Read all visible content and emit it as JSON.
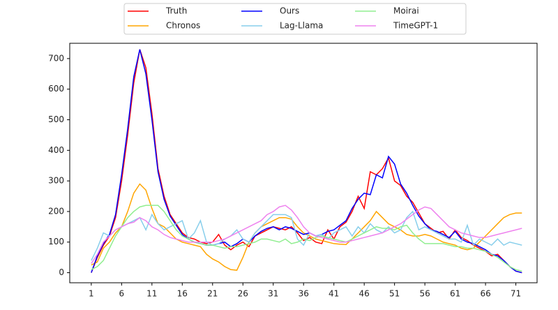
{
  "chart_data": {
    "type": "line",
    "x": [
      1,
      2,
      3,
      4,
      5,
      6,
      7,
      8,
      9,
      10,
      11,
      12,
      13,
      14,
      15,
      16,
      17,
      18,
      19,
      20,
      21,
      22,
      23,
      24,
      25,
      26,
      27,
      28,
      29,
      30,
      31,
      32,
      33,
      34,
      35,
      36,
      37,
      38,
      39,
      40,
      41,
      42,
      43,
      44,
      45,
      46,
      47,
      48,
      49,
      50,
      51,
      52,
      53,
      54,
      55,
      56,
      57,
      58,
      59,
      60,
      61,
      62,
      63,
      64,
      65,
      66,
      67,
      68,
      69,
      70,
      71,
      72
    ],
    "xlim": [
      -2.55,
      74.5
    ],
    "xticks": [
      1,
      6,
      11,
      16,
      21,
      26,
      31,
      36,
      41,
      46,
      51,
      56,
      61,
      66,
      71
    ],
    "ylim": [
      -33,
      750
    ],
    "yticks": [
      0,
      100,
      200,
      300,
      400,
      500,
      600,
      700
    ],
    "series": [
      {
        "name": "Truth",
        "color": "#ff0000",
        "values": [
          0,
          50,
          90,
          120,
          180,
          300,
          450,
          620,
          730,
          670,
          520,
          340,
          250,
          190,
          160,
          130,
          115,
          110,
          100,
          95,
          100,
          125,
          90,
          75,
          90,
          100,
          85,
          120,
          130,
          140,
          150,
          145,
          140,
          150,
          130,
          105,
          115,
          100,
          95,
          140,
          110,
          150,
          165,
          200,
          250,
          210,
          330,
          320,
          340,
          375,
          300,
          285,
          250,
          230,
          195,
          160,
          145,
          130,
          135,
          110,
          140,
          115,
          105,
          90,
          80,
          70,
          55,
          60,
          40,
          20,
          5,
          0
        ]
      },
      {
        "name": "Chronos",
        "color": "#ffa500",
        "values": [
          25,
          35,
          80,
          100,
          130,
          150,
          200,
          260,
          290,
          270,
          210,
          160,
          150,
          130,
          110,
          100,
          95,
          90,
          85,
          60,
          45,
          35,
          20,
          10,
          8,
          50,
          100,
          130,
          150,
          160,
          170,
          180,
          180,
          175,
          150,
          130,
          120,
          110,
          105,
          100,
          95,
          93,
          92,
          110,
          130,
          150,
          170,
          200,
          180,
          160,
          150,
          140,
          125,
          120,
          120,
          125,
          120,
          110,
          100,
          95,
          90,
          80,
          75,
          80,
          100,
          120,
          140,
          160,
          180,
          190,
          195,
          195
        ]
      },
      {
        "name": "Ours",
        "color": "#0000ff",
        "values": [
          0,
          55,
          95,
          125,
          190,
          320,
          470,
          640,
          730,
          650,
          500,
          330,
          240,
          185,
          155,
          125,
          110,
          100,
          95,
          90,
          90,
          95,
          100,
          85,
          95,
          110,
          100,
          120,
          135,
          145,
          150,
          140,
          150,
          145,
          135,
          125,
          130,
          120,
          125,
          135,
          140,
          155,
          170,
          210,
          240,
          260,
          255,
          320,
          310,
          380,
          355,
          290,
          260,
          220,
          185,
          160,
          140,
          135,
          125,
          115,
          135,
          110,
          100,
          95,
          85,
          75,
          60,
          55,
          40,
          20,
          5,
          0
        ]
      },
      {
        "name": "Lag-Llama",
        "color": "#87ceeb",
        "values": [
          40,
          80,
          130,
          120,
          140,
          150,
          160,
          170,
          180,
          140,
          190,
          160,
          140,
          150,
          160,
          170,
          110,
          130,
          170,
          100,
          90,
          95,
          110,
          120,
          140,
          110,
          100,
          130,
          150,
          170,
          190,
          190,
          190,
          180,
          110,
          90,
          130,
          120,
          125,
          110,
          130,
          140,
          150,
          120,
          150,
          130,
          160,
          140,
          130,
          150,
          130,
          140,
          180,
          200,
          140,
          150,
          140,
          130,
          120,
          110,
          110,
          100,
          155,
          90,
          110,
          100,
          90,
          110,
          90,
          100,
          95,
          90
        ]
      },
      {
        "name": "Moirai",
        "color": "#90ee90",
        "values": [
          10,
          20,
          40,
          80,
          120,
          150,
          180,
          200,
          215,
          220,
          220,
          220,
          200,
          170,
          140,
          120,
          110,
          100,
          95,
          90,
          90,
          85,
          80,
          85,
          85,
          90,
          95,
          100,
          110,
          110,
          105,
          100,
          110,
          95,
          100,
          110,
          105,
          115,
          120,
          115,
          110,
          105,
          100,
          110,
          120,
          130,
          140,
          150,
          145,
          145,
          140,
          150,
          155,
          130,
          110,
          95,
          95,
          95,
          95,
          90,
          85,
          85,
          80,
          80,
          75,
          70,
          60,
          50,
          35,
          20,
          10,
          5
        ]
      },
      {
        "name": "TimeGPT-1",
        "color": "#ee82ee",
        "values": [
          30,
          60,
          100,
          120,
          140,
          150,
          160,
          165,
          180,
          170,
          150,
          140,
          125,
          115,
          110,
          105,
          100,
          100,
          100,
          100,
          100,
          105,
          110,
          120,
          130,
          140,
          150,
          160,
          170,
          190,
          200,
          215,
          220,
          205,
          180,
          150,
          130,
          120,
          115,
          110,
          105,
          100,
          100,
          105,
          110,
          115,
          120,
          125,
          130,
          140,
          150,
          160,
          175,
          190,
          205,
          215,
          210,
          190,
          170,
          150,
          140,
          130,
          125,
          120,
          115,
          115,
          120,
          125,
          130,
          135,
          140,
          145
        ]
      }
    ]
  }
}
